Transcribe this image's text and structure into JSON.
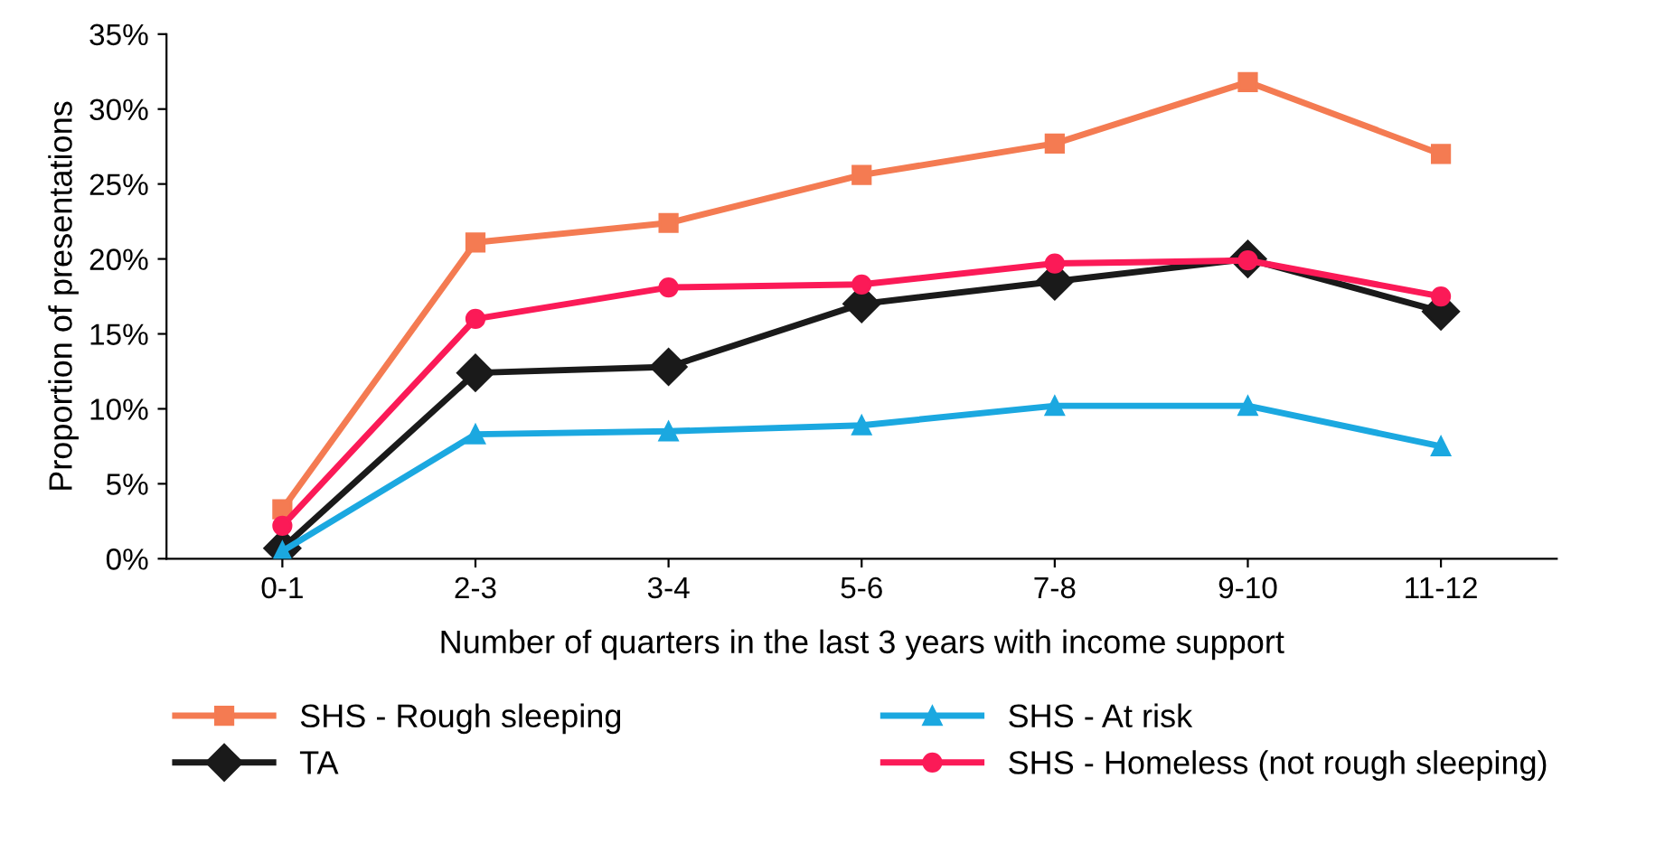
{
  "chart_data": {
    "type": "line",
    "xlabel": "Number of quarters in the last 3 years with income support",
    "ylabel": "Proportion of presentations",
    "categories": [
      "0-1",
      "2-3",
      "3-4",
      "5-6",
      "7-8",
      "9-10",
      "11-12"
    ],
    "series": [
      {
        "name": "SHS - Rough sleeping",
        "color": "#f47b52",
        "marker": "square",
        "values": [
          3.3,
          21.1,
          22.4,
          25.6,
          27.7,
          31.8,
          27.0
        ]
      },
      {
        "name": "SHS - At risk",
        "color": "#1ba8e0",
        "marker": "triangle",
        "values": [
          0.5,
          8.3,
          8.5,
          8.9,
          10.2,
          10.2,
          7.5
        ]
      },
      {
        "name": "TA",
        "color": "#1a1a1a",
        "marker": "diamond",
        "values": [
          0.7,
          12.4,
          12.8,
          17.0,
          18.5,
          20.0,
          16.5
        ]
      },
      {
        "name": "SHS - Homeless (not rough sleeping)",
        "color": "#fb1a57",
        "marker": "circle",
        "values": [
          2.2,
          16.0,
          18.1,
          18.3,
          19.7,
          19.9,
          17.5
        ]
      }
    ],
    "ylim": [
      0,
      35
    ],
    "yticks": [
      {
        "value": 0,
        "label": "0%"
      },
      {
        "value": 5,
        "label": "5%"
      },
      {
        "value": 10,
        "label": "10%"
      },
      {
        "value": 15,
        "label": "15%"
      },
      {
        "value": 20,
        "label": "20%"
      },
      {
        "value": 25,
        "label": "25%"
      },
      {
        "value": 30,
        "label": "30%"
      },
      {
        "value": 35,
        "label": "35%"
      }
    ],
    "grid": false,
    "legend": "bottom",
    "line_style": "solid"
  }
}
